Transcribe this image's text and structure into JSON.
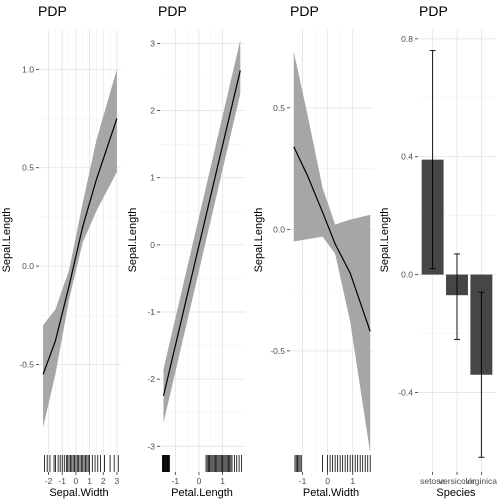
{
  "chart_data": [
    {
      "type": "line",
      "title": "PDP",
      "xlabel": "Sepal.Width",
      "ylabel": "Sepal.Length",
      "xlim": [
        -2.7,
        3.3
      ],
      "ylim": [
        -0.95,
        1.2
      ],
      "xticks": [
        -2,
        -1,
        0,
        1,
        2,
        3
      ],
      "yticks": [
        -0.5,
        0.0,
        0.5,
        1.0
      ],
      "ytick_labels": [
        "-0.5",
        "0.0",
        "0.5",
        "1.0"
      ],
      "grid": true,
      "series": [
        {
          "x": [
            -2.4,
            -1.5,
            -0.5,
            0.5,
            1.5,
            3.0
          ],
          "y": [
            -0.55,
            -0.38,
            -0.1,
            0.2,
            0.44,
            0.75
          ],
          "lower": [
            -0.82,
            -0.55,
            -0.17,
            0.12,
            0.28,
            0.48
          ],
          "upper": [
            -0.3,
            -0.22,
            -0.02,
            0.32,
            0.64,
            1.0
          ]
        }
      ],
      "rug": [
        -2.3,
        -2.1,
        -1.9,
        -1.6,
        -1.5,
        -1.3,
        -1.15,
        -1.0,
        -0.85,
        -0.7,
        -0.6,
        -0.5,
        -0.4,
        -0.3,
        -0.2,
        -0.1,
        0.0,
        0.1,
        0.2,
        0.3,
        0.4,
        0.5,
        0.6,
        0.7,
        0.8,
        0.9,
        1.0,
        1.2,
        1.4,
        1.6,
        1.8,
        2.1,
        2.5,
        2.8,
        3.1
      ]
    },
    {
      "type": "line",
      "title": "PDP",
      "xlabel": "Petal.Length",
      "ylabel": "Sepal.Length",
      "xlim": [
        -1.65,
        1.95
      ],
      "ylim": [
        -3.1,
        3.2
      ],
      "xticks": [
        -1,
        0,
        1
      ],
      "yticks": [
        -3,
        -2,
        -1,
        0,
        1,
        2,
        3
      ],
      "ytick_labels": [
        "-3",
        "-2",
        "-1",
        "0",
        "1",
        "2",
        "3"
      ],
      "grid": true,
      "series": [
        {
          "x": [
            -1.5,
            1.75
          ],
          "y": [
            -2.25,
            2.6
          ],
          "lower": [
            -2.65,
            2.25
          ],
          "upper": [
            -1.85,
            3.05
          ]
        }
      ],
      "rug": [
        -1.55,
        -1.52,
        -1.5,
        -1.48,
        -1.45,
        -1.42,
        -1.4,
        -1.38,
        -1.35,
        -1.32,
        -1.3,
        -1.27,
        -1.25,
        0.3,
        0.35,
        0.4,
        0.45,
        0.5,
        0.55,
        0.6,
        0.65,
        0.7,
        0.75,
        0.8,
        0.85,
        0.9,
        0.95,
        1.0,
        1.05,
        1.1,
        1.15,
        1.2,
        1.25,
        1.3,
        1.35,
        1.4,
        1.5,
        1.6,
        1.7,
        1.8
      ]
    },
    {
      "type": "line",
      "title": "PDP",
      "xlabel": "Petal.Width",
      "ylabel": "Sepal.Length",
      "xlim": [
        -1.5,
        1.85
      ],
      "ylim": [
        -0.92,
        0.82
      ],
      "xticks": [
        -1,
        0,
        1
      ],
      "yticks": [
        -0.5,
        0.0,
        0.5
      ],
      "ytick_labels": [
        "-0.5",
        "0.0",
        "0.5"
      ],
      "grid": true,
      "series": [
        {
          "x": [
            -1.35,
            -0.8,
            -0.2,
            0.3,
            0.9,
            1.7
          ],
          "y": [
            0.34,
            0.22,
            0.07,
            -0.06,
            -0.18,
            -0.42
          ],
          "lower": [
            -0.05,
            -0.04,
            -0.03,
            -0.1,
            -0.38,
            -0.92
          ],
          "upper": [
            0.73,
            0.47,
            0.17,
            0.02,
            0.04,
            0.06
          ]
        }
      ],
      "rug": [
        -1.3,
        -1.25,
        -1.2,
        -1.15,
        -1.1,
        -1.05,
        -0.2,
        0.0,
        0.1,
        0.2,
        0.3,
        0.4,
        0.5,
        0.6,
        0.7,
        0.8,
        0.9,
        1.0,
        1.1,
        1.2,
        1.3,
        1.4,
        1.5,
        1.6,
        1.7
      ]
    },
    {
      "type": "bar",
      "title": "PDP",
      "xlabel": "Species",
      "ylabel": "Sepal.Length",
      "categories": [
        "setosa",
        "versicolor",
        "virginica"
      ],
      "values": [
        0.39,
        -0.07,
        -0.34
      ],
      "lower": [
        0.02,
        -0.22,
        -0.62
      ],
      "upper": [
        0.76,
        0.07,
        -0.06
      ],
      "ylim": [
        -0.67,
        0.83
      ],
      "yticks": [
        -0.4,
        0.0,
        0.4,
        0.8
      ],
      "ytick_labels": [
        "-0.4",
        "0.0",
        "0.4",
        "0.8"
      ],
      "grid": true
    }
  ]
}
